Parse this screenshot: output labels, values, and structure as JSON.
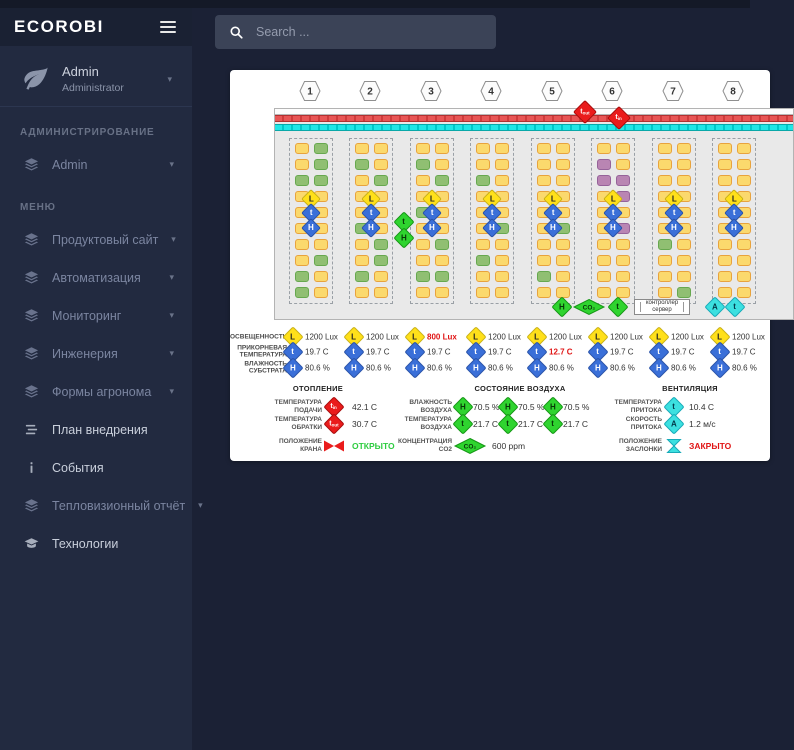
{
  "topbar": {
    "search_placeholder": "Search ..."
  },
  "sidebar": {
    "brand": "ECOROBI",
    "user": {
      "name": "Admin",
      "role": "Administrator"
    },
    "groups": [
      {
        "header": "АДМИНИСТРИРОВАНИЕ",
        "items": [
          {
            "name": "admin",
            "label": "Admin",
            "icon": "layers",
            "caret": true,
            "bright": false
          }
        ]
      },
      {
        "header": "МЕНЮ",
        "items": [
          {
            "name": "product-site",
            "label": "Продуктовый сайт",
            "icon": "layers",
            "caret": true,
            "bright": false
          },
          {
            "name": "automation",
            "label": "Автоматизация",
            "icon": "layers",
            "caret": true,
            "bright": false
          },
          {
            "name": "monitoring",
            "label": "Мониторинг",
            "icon": "layers",
            "caret": true,
            "bright": false
          },
          {
            "name": "engineering",
            "label": "Инженерия",
            "icon": "layers",
            "caret": true,
            "bright": false
          },
          {
            "name": "agronomist-forms",
            "label": "Формы агронома",
            "icon": "layers",
            "caret": true,
            "bright": false
          },
          {
            "name": "implementation-plan",
            "label": "План внедрения",
            "icon": "list",
            "caret": false,
            "bright": true
          },
          {
            "name": "events",
            "label": "События",
            "icon": "info",
            "caret": false,
            "bright": true
          },
          {
            "name": "thermal-report",
            "label": "Тепловизионный отчёт",
            "icon": "layers",
            "caret": true,
            "bright": false
          },
          {
            "name": "technologies",
            "label": "Технологии",
            "icon": "cap",
            "caret": false,
            "bright": true
          }
        ]
      }
    ]
  },
  "diagram": {
    "section_numbers": [
      "1",
      "2",
      "3",
      "4",
      "5",
      "6",
      "7",
      "8"
    ],
    "square_colors": {
      "Y": {
        "bg": "#fbd96d",
        "border": "#e8a33d"
      },
      "G": {
        "bg": "#90bf72",
        "border": "#67a84f"
      },
      "P": {
        "bg": "#b985b3",
        "border": "#96639a"
      }
    },
    "sections": [
      {
        "pattern": [
          "YG",
          "YG",
          "GG",
          "YY",
          "YY",
          "YY",
          "YY",
          "YG",
          "GY",
          "GY"
        ]
      },
      {
        "pattern": [
          "YY",
          "GY",
          "YG",
          "YY",
          "YY",
          "GY",
          "YG",
          "YG",
          "GY",
          "YY"
        ]
      },
      {
        "pattern": [
          "YY",
          "GY",
          "YG",
          "YY",
          "GY",
          "YY",
          "YG",
          "YY",
          "GG",
          "YY"
        ]
      },
      {
        "pattern": [
          "YY",
          "YY",
          "GY",
          "YY",
          "YY",
          "YG",
          "YY",
          "GY",
          "YY",
          "YY"
        ]
      },
      {
        "pattern": [
          "YY",
          "YY",
          "YY",
          "YY",
          "YY",
          "YG",
          "YY",
          "YY",
          "GY",
          "YY"
        ]
      },
      {
        "pattern": [
          "YY",
          "PY",
          "PP",
          "YP",
          "YY",
          "YP",
          "YY",
          "YY",
          "YY",
          "YY"
        ]
      },
      {
        "pattern": [
          "YY",
          "YY",
          "YY",
          "YY",
          "YY",
          "YY",
          "GY",
          "YY",
          "YY",
          "YG"
        ]
      },
      {
        "pattern": [
          "YY",
          "YY",
          "YY",
          "YY",
          "YY",
          "YY",
          "YY",
          "YY",
          "YY",
          "YY"
        ]
      }
    ],
    "section_sensor_letters": [
      "L",
      "t",
      "H"
    ],
    "pipe_sensors": [
      {
        "letter": "t",
        "sub": "out"
      },
      {
        "letter": "t",
        "sub": "in"
      }
    ],
    "mid_sensors": [
      {
        "letter": "t"
      },
      {
        "letter": "H"
      }
    ],
    "bottom_sensors": [
      {
        "letter": "H"
      },
      {
        "letter": "CO₂"
      },
      {
        "letter": "t"
      }
    ],
    "controller_label": "контроллер\nсервер",
    "vent_sensors": [
      {
        "letter": "A"
      },
      {
        "letter": "t"
      }
    ]
  },
  "readings": {
    "row_labels": [
      "ОСВЕЩЕННОСТЬ",
      "ПРИКОРНЕВАЯ\nТЕМПЕРАТУРА",
      "ВЛАЖНОСТЬ\nСУБСТРАТА"
    ],
    "columns": [
      {
        "lux": "1200 Lux",
        "temp": "19.7 C",
        "hum": "80.6 %",
        "lux_alarm": false,
        "temp_alarm": false
      },
      {
        "lux": "1200 Lux",
        "temp": "19.7 C",
        "hum": "80.6 %",
        "lux_alarm": false,
        "temp_alarm": false
      },
      {
        "lux": "800 Lux",
        "temp": "19.7 C",
        "hum": "80.6 %",
        "lux_alarm": true,
        "temp_alarm": false
      },
      {
        "lux": "1200 Lux",
        "temp": "19.7 C",
        "hum": "80.6 %",
        "lux_alarm": false,
        "temp_alarm": false
      },
      {
        "lux": "1200 Lux",
        "temp": "12.7 C",
        "hum": "80.6 %",
        "lux_alarm": false,
        "temp_alarm": true
      },
      {
        "lux": "1200 Lux",
        "temp": "19.7 C",
        "hum": "80.6 %",
        "lux_alarm": false,
        "temp_alarm": false
      },
      {
        "lux": "1200 Lux",
        "temp": "19.7 C",
        "hum": "80.6 %",
        "lux_alarm": false,
        "temp_alarm": false
      },
      {
        "lux": "1200 Lux",
        "temp": "19.7 C",
        "hum": "80.6 %",
        "lux_alarm": false,
        "temp_alarm": false
      }
    ]
  },
  "panels": {
    "heating": {
      "title": "ОТОПЛЕНИЕ",
      "rows": [
        {
          "label": "ТЕМПЕРАТУРА\nПОДАЧИ",
          "value": "42.1 C",
          "icon": {
            "letter": "t",
            "sub": "in"
          }
        },
        {
          "label": "ТЕМПЕРАТУРА\nОБРАТКИ",
          "value": "30.7 C",
          "icon": {
            "letter": "t",
            "sub": "out"
          }
        },
        {
          "label": "ПОЛОЖЕНИЕ\nКРАНА",
          "value": "ОТКРЫТО",
          "status": "open"
        }
      ]
    },
    "air": {
      "title": "СОСТОЯНИЕ ВОЗДУХА",
      "humidity": {
        "label": "ВЛАЖНОСТЬ\nВОЗДУХА",
        "letter": "H",
        "values": [
          "70.5 %",
          "70.5 %",
          "70.5 %"
        ]
      },
      "temperature": {
        "label": "ТЕМПЕРАТУРА\nВОЗДУХА",
        "letter": "t",
        "values": [
          "21.7 C",
          "21.7 C",
          "21.7 C"
        ]
      },
      "co2": {
        "label": "КОНЦЕНТРАЦИЯ\nCO2",
        "letter": "CO₂",
        "value": "600 ppm"
      }
    },
    "ventilation": {
      "title": "ВЕНТИЛЯЦИЯ",
      "rows": [
        {
          "label": "ТЕМПЕРАТУРА\nПРИТОКА",
          "value": "10.4 C",
          "icon": {
            "letter": "t"
          }
        },
        {
          "label": "СКОРОСТЬ\nПРИТОКА",
          "value": "1.2 м/с",
          "icon": {
            "letter": "A"
          }
        },
        {
          "label": "ПОЛОЖЕНИЕ\nЗАСЛОНКИ",
          "value": "ЗАКРЫТО",
          "status": "closed"
        }
      ]
    }
  }
}
